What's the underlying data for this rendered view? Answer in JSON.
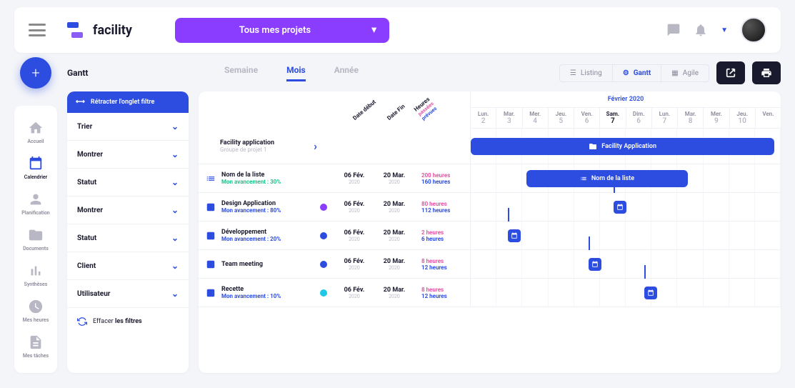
{
  "brand": {
    "name": "facility"
  },
  "header": {
    "project_selector": "Tous mes projets"
  },
  "sidenav": [
    {
      "key": "accueil",
      "label": "Accueil",
      "active": false
    },
    {
      "key": "calendrier",
      "label": "Calendrier",
      "active": true
    },
    {
      "key": "planification",
      "label": "Planification",
      "active": false
    },
    {
      "key": "documents",
      "label": "Documents",
      "active": false
    },
    {
      "key": "syntheses",
      "label": "Synthèses",
      "active": false
    },
    {
      "key": "mes-heures",
      "label": "Mes heures",
      "active": false
    },
    {
      "key": "mes-taches",
      "label": "Mes tâches",
      "active": false
    }
  ],
  "page": {
    "title": "Gantt"
  },
  "time_tabs": [
    {
      "key": "semaine",
      "label": "Semaine",
      "active": false
    },
    {
      "key": "mois",
      "label": "Mois",
      "active": true
    },
    {
      "key": "annee",
      "label": "Année",
      "active": false
    }
  ],
  "view_tabs": [
    {
      "key": "listing",
      "label": "Listing",
      "active": false
    },
    {
      "key": "gantt",
      "label": "Gantt",
      "active": true
    },
    {
      "key": "agile",
      "label": "Agile",
      "active": false
    }
  ],
  "filters": {
    "header": "Rétracter l'onglet filtre",
    "items": [
      {
        "label": "Trier"
      },
      {
        "label": "Montrer"
      },
      {
        "label": "Statut"
      },
      {
        "label": "Montrer"
      },
      {
        "label": "Statut"
      },
      {
        "label": "Client"
      },
      {
        "label": "Utilisateur"
      }
    ],
    "clear_prefix": "Effacer ",
    "clear_bold": "les filtres"
  },
  "gantt": {
    "col_headers": {
      "start": "Date début",
      "end": "Date Fin",
      "hours": "Heures",
      "hours_sub1": "passées",
      "hours_sub2": "prévues"
    },
    "month": "Février 2020",
    "days": [
      {
        "name": "Lun.",
        "num": "2"
      },
      {
        "name": "Mar.",
        "num": "3"
      },
      {
        "name": "Mer.",
        "num": "4"
      },
      {
        "name": "Jeu.",
        "num": "5"
      },
      {
        "name": "Ven.",
        "num": "6"
      },
      {
        "name": "Sam.",
        "num": "7",
        "sat": true
      },
      {
        "name": "Dim.",
        "num": "6"
      },
      {
        "name": "Lun.",
        "num": "7"
      },
      {
        "name": "Mar.",
        "num": "8"
      },
      {
        "name": "Mer.",
        "num": "9"
      },
      {
        "name": "Jeu.",
        "num": "10"
      },
      {
        "name": "Ven.",
        "num": ""
      }
    ],
    "project": {
      "title": "Facility application",
      "subtitle": "Groupe de projet 1",
      "bar_label": "Facility Application",
      "bar_color": "#2d4de0",
      "bar_left_pct": 0,
      "bar_width_pct": 98
    },
    "rows": [
      {
        "type": "list",
        "title": "Nom de la liste",
        "progress": "Mon avancement : 30%",
        "progress_color": "#1ec28b",
        "start": "06 Fév.",
        "start_y": "2020",
        "end": "20 Mar.",
        "end_y": "2020",
        "h1": "200 heures",
        "h2": "160 heures",
        "bar_label": "Nom de la liste",
        "bar_color": "#2d4de0",
        "bar_left_pct": 18,
        "bar_width_pct": 52
      },
      {
        "type": "task",
        "title": "Design Application",
        "progress": "Mon avancement : 80%",
        "progress_color": "#2d4de0",
        "marker_color": "#8b3dff",
        "start": "06 Fév.",
        "start_y": "2020",
        "end": "20 Mar.",
        "end_y": "2020",
        "h1": "80 heures",
        "h2": "112 heures",
        "node_left_pct": 46
      },
      {
        "type": "task",
        "title": "Développement",
        "progress": "Mon avancement : 20%",
        "progress_color": "#2d4de0",
        "marker_color": "#2d4de0",
        "start": "06 Fév.",
        "start_y": "2020",
        "end": "20 Mar.",
        "end_y": "2020",
        "h1": "2 heures",
        "h2": "6 heures",
        "node_left_pct": 12
      },
      {
        "type": "task",
        "title": "Team meeting",
        "progress": "",
        "progress_color": "#2d4de0",
        "marker_color": "#2d4de0",
        "start": "06 Fév.",
        "start_y": "2020",
        "end": "20 Mar.",
        "end_y": "2020",
        "h1": "8 heures",
        "h2": "12 heures",
        "node_left_pct": 38
      },
      {
        "type": "task",
        "title": "Recette",
        "progress": "Mon avancement : 10%",
        "progress_color": "#2d4de0",
        "marker_color": "#1ec9e8",
        "start": "06 Fév.",
        "start_y": "2020",
        "end": "20 Mar.",
        "end_y": "2020",
        "h1": "8 heures",
        "h2": "12 heures",
        "node_left_pct": 56
      }
    ]
  },
  "colors": {
    "primary": "#2d4de0",
    "purple": "#8b3dff",
    "pink": "#e055a5",
    "green": "#1ec28b"
  }
}
